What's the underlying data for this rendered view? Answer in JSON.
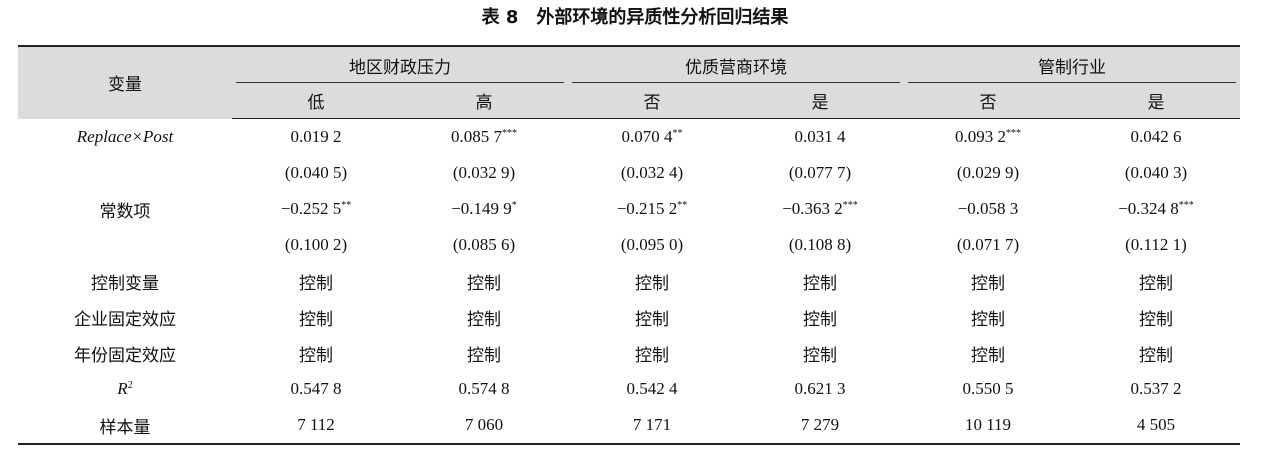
{
  "title": "表 8　外部环境的异质性分析回归结果",
  "table": {
    "header": {
      "label": "变量",
      "groups": [
        {
          "name": "地区财政压力",
          "subs": [
            "低",
            "高"
          ]
        },
        {
          "name": "优质营商环境",
          "subs": [
            "否",
            "是"
          ]
        },
        {
          "name": "管制行业",
          "subs": [
            "否",
            "是"
          ]
        }
      ]
    },
    "rows": [
      {
        "label": {
          "text": "Replace×Post",
          "italic": true
        },
        "cells": [
          "0.019 2",
          {
            "text": "0.085 7",
            "sup": "***"
          },
          {
            "text": "0.070 4",
            "sup": "**"
          },
          "0.031 4",
          {
            "text": "0.093 2",
            "sup": "***"
          },
          "0.042 6"
        ]
      },
      {
        "label": null,
        "cells": [
          "(0.040 5)",
          "(0.032 9)",
          "(0.032 4)",
          "(0.077 7)",
          "(0.029 9)",
          "(0.040 3)"
        ]
      },
      {
        "label": "常数项",
        "cells": [
          {
            "text": "−0.252 5",
            "sup": "**"
          },
          {
            "text": "−0.149 9",
            "sup": "*"
          },
          {
            "text": "−0.215 2",
            "sup": "**"
          },
          {
            "text": "−0.363 2",
            "sup": "***"
          },
          "−0.058 3",
          {
            "text": "−0.324 8",
            "sup": "***"
          }
        ]
      },
      {
        "label": null,
        "cells": [
          "(0.100 2)",
          "(0.085 6)",
          "(0.095 0)",
          "(0.108 8)",
          "(0.071 7)",
          "(0.112 1)"
        ]
      },
      {
        "label": "控制变量",
        "cells": [
          "控制",
          "控制",
          "控制",
          "控制",
          "控制",
          "控制"
        ]
      },
      {
        "label": "企业固定效应",
        "cells": [
          "控制",
          "控制",
          "控制",
          "控制",
          "控制",
          "控制"
        ]
      },
      {
        "label": "年份固定效应",
        "cells": [
          "控制",
          "控制",
          "控制",
          "控制",
          "控制",
          "控制"
        ]
      },
      {
        "label": {
          "text": "R",
          "sup": "2",
          "italic": true
        },
        "cells": [
          "0.547 8",
          "0.574 8",
          "0.542 4",
          "0.621 3",
          "0.550 5",
          "0.537 2"
        ]
      },
      {
        "label": "样本量",
        "cells": [
          "7 112",
          "7 060",
          "7 171",
          "7 279",
          "10 119",
          "4 505"
        ]
      }
    ]
  }
}
